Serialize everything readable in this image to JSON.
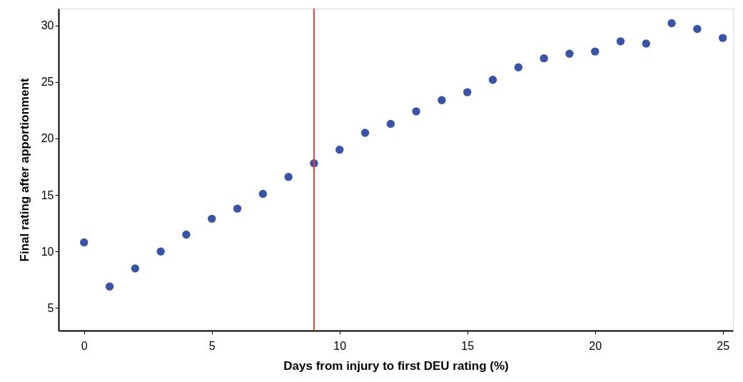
{
  "chart_data": {
    "type": "scatter",
    "xlabel": "Days from injury to first DEU rating (%)",
    "ylabel": "Final rating after apportionment",
    "x": [
      0,
      1,
      2,
      3,
      4,
      5,
      6,
      7,
      8,
      9,
      10,
      11,
      12,
      13,
      14,
      15,
      16,
      17,
      18,
      19,
      20,
      21,
      22,
      23,
      24,
      25
    ],
    "series": [
      {
        "color": "#3a53a4",
        "values": [
          10.8,
          6.9,
          8.5,
          10.0,
          11.5,
          12.9,
          13.8,
          15.1,
          16.6,
          17.8,
          19.0,
          20.5,
          21.3,
          22.4,
          23.4,
          24.1,
          25.2,
          26.3,
          27.1,
          27.5,
          27.7,
          28.6,
          28.4,
          30.2,
          29.7,
          28.9
        ]
      }
    ],
    "xlim": [
      -1,
      25.4
    ],
    "ylim": [
      3,
      31.5
    ],
    "xticks": [
      0,
      5,
      10,
      15,
      20,
      25
    ],
    "yticks": [
      5,
      10,
      15,
      20,
      25,
      30
    ],
    "ref_lines": [
      {
        "axis": "x",
        "value": 9,
        "color": "#e8413c"
      }
    ],
    "grid": false,
    "marker": "circle"
  }
}
